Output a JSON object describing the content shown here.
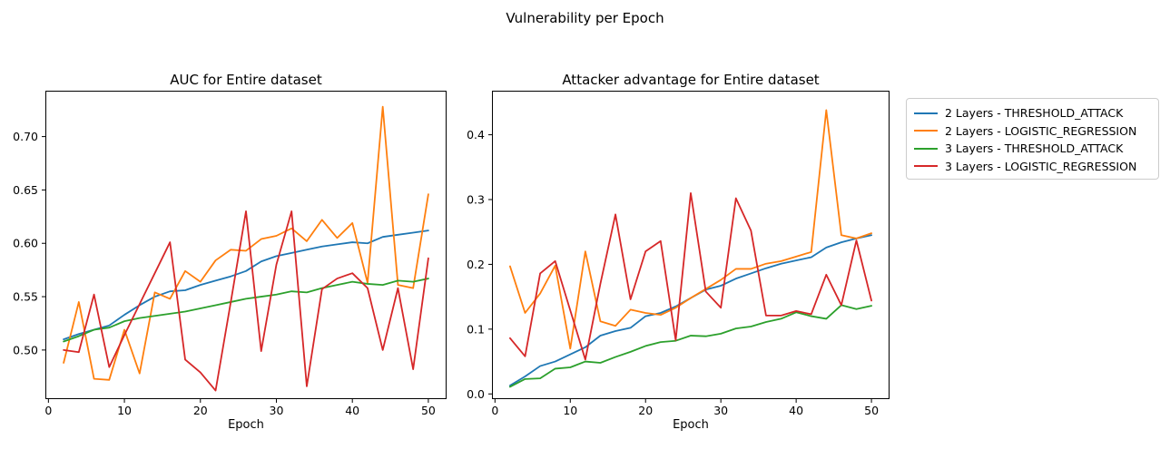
{
  "suptitle": "Vulnerability per Epoch",
  "legend": {
    "entries": [
      {
        "label": "2 Layers - THRESHOLD_ATTACK",
        "color": "#1f77b4"
      },
      {
        "label": "2 Layers - LOGISTIC_REGRESSION",
        "color": "#ff7f0e"
      },
      {
        "label": "3 Layers - THRESHOLD_ATTACK",
        "color": "#2ca02c"
      },
      {
        "label": "3 Layers - LOGISTIC_REGRESSION",
        "color": "#d62728"
      }
    ]
  },
  "chart_data": [
    {
      "type": "line",
      "title": "AUC for Entire dataset",
      "xlabel": "Epoch",
      "ylabel": "",
      "xlim": [
        -0.4,
        52.4
      ],
      "ylim": [
        0.454,
        0.743
      ],
      "xticks": [
        0,
        10,
        20,
        30,
        40,
        50
      ],
      "xtick_labels": [
        "0",
        "10",
        "20",
        "30",
        "40",
        "50"
      ],
      "yticks": [
        0.5,
        0.55,
        0.6,
        0.65,
        0.7
      ],
      "ytick_labels": [
        "0.50",
        "0.55",
        "0.60",
        "0.65",
        "0.70"
      ],
      "grid": false,
      "x": [
        2,
        4,
        6,
        8,
        10,
        12,
        14,
        16,
        18,
        20,
        22,
        24,
        26,
        28,
        30,
        32,
        34,
        36,
        38,
        40,
        42,
        44,
        46,
        48,
        50
      ],
      "series": [
        {
          "name": "2 Layers - THRESHOLD_ATTACK",
          "color": "#1f77b4",
          "values": [
            0.51,
            0.515,
            0.519,
            0.523,
            0.533,
            0.542,
            0.55,
            0.555,
            0.556,
            0.561,
            0.565,
            0.569,
            0.574,
            0.583,
            0.588,
            0.591,
            0.594,
            0.597,
            0.599,
            0.601,
            0.6,
            0.606,
            0.608,
            0.61,
            0.612
          ]
        },
        {
          "name": "2 Layers - LOGISTIC_REGRESSION",
          "color": "#ff7f0e",
          "values": [
            0.488,
            0.545,
            0.473,
            0.472,
            0.519,
            0.478,
            0.554,
            0.548,
            0.574,
            0.564,
            0.584,
            0.594,
            0.593,
            0.604,
            0.607,
            0.614,
            0.602,
            0.622,
            0.605,
            0.619,
            0.563,
            0.728,
            0.561,
            0.558,
            0.646
          ]
        },
        {
          "name": "3 Layers - THRESHOLD_ATTACK",
          "color": "#2ca02c",
          "values": [
            0.508,
            0.513,
            0.519,
            0.521,
            0.527,
            0.53,
            0.532,
            0.534,
            0.536,
            0.539,
            0.542,
            0.545,
            0.548,
            0.55,
            0.552,
            0.555,
            0.554,
            0.558,
            0.561,
            0.564,
            0.562,
            0.561,
            0.565,
            0.564,
            0.567
          ]
        },
        {
          "name": "3 Layers - LOGISTIC_REGRESSION",
          "color": "#d62728",
          "values": [
            0.5,
            0.498,
            0.552,
            0.484,
            0.514,
            0.543,
            0.572,
            0.601,
            0.491,
            0.479,
            0.462,
            0.545,
            0.63,
            0.499,
            0.58,
            0.63,
            0.466,
            0.557,
            0.567,
            0.572,
            0.558,
            0.5,
            0.558,
            0.482,
            0.586
          ]
        }
      ]
    },
    {
      "type": "line",
      "title": "Attacker advantage for Entire dataset",
      "xlabel": "Epoch",
      "ylabel": "",
      "xlim": [
        -0.4,
        52.4
      ],
      "ylim": [
        -0.008,
        0.468
      ],
      "xticks": [
        0,
        10,
        20,
        30,
        40,
        50
      ],
      "xtick_labels": [
        "0",
        "10",
        "20",
        "30",
        "40",
        "50"
      ],
      "yticks": [
        0.0,
        0.1,
        0.2,
        0.3,
        0.4
      ],
      "ytick_labels": [
        "0.0",
        "0.1",
        "0.2",
        "0.3",
        "0.4"
      ],
      "grid": false,
      "x": [
        2,
        4,
        6,
        8,
        10,
        12,
        14,
        16,
        18,
        20,
        22,
        24,
        26,
        28,
        30,
        32,
        34,
        36,
        38,
        40,
        42,
        44,
        46,
        48,
        50
      ],
      "series": [
        {
          "name": "2 Layers - THRESHOLD_ATTACK",
          "color": "#1f77b4",
          "values": [
            0.013,
            0.027,
            0.043,
            0.05,
            0.061,
            0.072,
            0.09,
            0.097,
            0.102,
            0.12,
            0.125,
            0.135,
            0.148,
            0.161,
            0.167,
            0.178,
            0.186,
            0.194,
            0.201,
            0.206,
            0.211,
            0.226,
            0.234,
            0.24,
            0.245
          ]
        },
        {
          "name": "2 Layers - LOGISTIC_REGRESSION",
          "color": "#ff7f0e",
          "values": [
            0.197,
            0.125,
            0.155,
            0.198,
            0.07,
            0.22,
            0.112,
            0.105,
            0.13,
            0.125,
            0.122,
            0.133,
            0.148,
            0.162,
            0.176,
            0.193,
            0.193,
            0.201,
            0.205,
            0.212,
            0.219,
            0.438,
            0.245,
            0.24,
            0.248
          ]
        },
        {
          "name": "3 Layers - THRESHOLD_ATTACK",
          "color": "#2ca02c",
          "values": [
            0.011,
            0.023,
            0.024,
            0.039,
            0.041,
            0.05,
            0.048,
            0.057,
            0.065,
            0.074,
            0.08,
            0.082,
            0.09,
            0.089,
            0.093,
            0.101,
            0.104,
            0.111,
            0.116,
            0.126,
            0.12,
            0.116,
            0.137,
            0.131,
            0.136
          ]
        },
        {
          "name": "3 Layers - LOGISTIC_REGRESSION",
          "color": "#d62728",
          "values": [
            0.086,
            0.058,
            0.186,
            0.205,
            0.129,
            0.053,
            0.17,
            0.277,
            0.146,
            0.22,
            0.236,
            0.083,
            0.31,
            0.158,
            0.133,
            0.302,
            0.252,
            0.121,
            0.121,
            0.128,
            0.123,
            0.184,
            0.137,
            0.237,
            0.144
          ]
        }
      ]
    }
  ]
}
